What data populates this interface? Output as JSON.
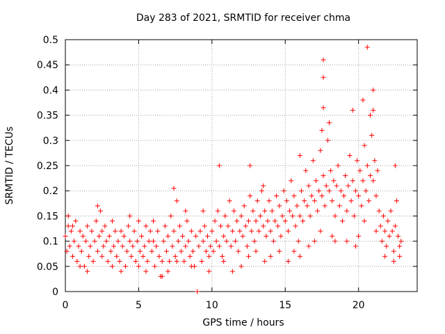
{
  "chart_data": {
    "type": "scatter",
    "title": "Day 283 of 2021, SRMTID for receiver chma",
    "xlabel": "GPS time / hours",
    "ylabel": "SRMTID / TECUs",
    "xlim": [
      0,
      24.0
    ],
    "ylim": [
      0,
      0.5
    ],
    "xticks": [
      0,
      5,
      10,
      15,
      20
    ],
    "yticks": [
      0,
      0.05,
      0.1,
      0.15,
      0.2,
      0.25,
      0.3,
      0.35,
      0.4,
      0.45,
      0.5
    ],
    "ytick_labels": [
      "0",
      "0.05",
      "0.1",
      "0.15",
      "0.2",
      "0.25",
      "0.3",
      "0.35",
      "0.4",
      "0.45",
      "0.5"
    ],
    "xtick_labels": [
      "0",
      "5",
      "10",
      "15",
      "20"
    ],
    "grid": true,
    "marker": "+",
    "marker_color": "#ff0000",
    "series": [
      {
        "name": "SRMTID",
        "points": [
          [
            0.0,
            0.11
          ],
          [
            0.1,
            0.08
          ],
          [
            0.2,
            0.13
          ],
          [
            0.3,
            0.09
          ],
          [
            0.4,
            0.12
          ],
          [
            0.5,
            0.07
          ],
          [
            0.6,
            0.1
          ],
          [
            0.7,
            0.14
          ],
          [
            0.8,
            0.06
          ],
          [
            0.9,
            0.09
          ],
          [
            1.0,
            0.12
          ],
          [
            1.1,
            0.08
          ],
          [
            1.2,
            0.11
          ],
          [
            1.3,
            0.05
          ],
          [
            1.4,
            0.1
          ],
          [
            1.5,
            0.13
          ],
          [
            1.6,
            0.07
          ],
          [
            1.7,
            0.09
          ],
          [
            1.8,
            0.12
          ],
          [
            1.9,
            0.06
          ],
          [
            2.0,
            0.1
          ],
          [
            2.1,
            0.14
          ],
          [
            2.2,
            0.08
          ],
          [
            2.3,
            0.11
          ],
          [
            2.4,
            0.16
          ],
          [
            2.5,
            0.07
          ],
          [
            2.6,
            0.09
          ],
          [
            2.7,
            0.13
          ],
          [
            2.8,
            0.1
          ],
          [
            2.9,
            0.06
          ],
          [
            3.0,
            0.11
          ],
          [
            3.1,
            0.08
          ],
          [
            3.2,
            0.14
          ],
          [
            3.3,
            0.09
          ],
          [
            3.4,
            0.12
          ],
          [
            3.5,
            0.07
          ],
          [
            3.6,
            0.1
          ],
          [
            3.7,
            0.06
          ],
          [
            3.8,
            0.12
          ],
          [
            3.9,
            0.09
          ],
          [
            4.0,
            0.11
          ],
          [
            4.1,
            0.05
          ],
          [
            4.2,
            0.08
          ],
          [
            4.3,
            0.13
          ],
          [
            4.4,
            0.1
          ],
          [
            4.5,
            0.07
          ],
          [
            4.6,
            0.09
          ],
          [
            4.7,
            0.12
          ],
          [
            4.8,
            0.06
          ],
          [
            4.9,
            0.1
          ],
          [
            5.0,
            0.14
          ],
          [
            5.1,
            0.08
          ],
          [
            5.2,
            0.11
          ],
          [
            5.3,
            0.07
          ],
          [
            5.4,
            0.09
          ],
          [
            5.5,
            0.13
          ],
          [
            5.6,
            0.06
          ],
          [
            5.7,
            0.1
          ],
          [
            5.8,
            0.12
          ],
          [
            5.9,
            0.08
          ],
          [
            6.0,
            0.1
          ],
          [
            6.1,
            0.05
          ],
          [
            6.2,
            0.09
          ],
          [
            6.3,
            0.12
          ],
          [
            6.4,
            0.07
          ],
          [
            6.5,
            0.03
          ],
          [
            6.6,
            0.06
          ],
          [
            6.7,
            0.1
          ],
          [
            6.8,
            0.13
          ],
          [
            6.9,
            0.08
          ],
          [
            7.0,
            0.11
          ],
          [
            7.1,
            0.06
          ],
          [
            7.2,
            0.15
          ],
          [
            7.3,
            0.09
          ],
          [
            7.4,
            0.12
          ],
          [
            7.5,
            0.07
          ],
          [
            7.6,
            0.18
          ],
          [
            7.7,
            0.1
          ],
          [
            7.8,
            0.13
          ],
          [
            7.9,
            0.08
          ],
          [
            8.0,
            0.11
          ],
          [
            8.1,
            0.06
          ],
          [
            8.2,
            0.09
          ],
          [
            8.3,
            0.14
          ],
          [
            8.4,
            0.1
          ],
          [
            8.5,
            0.07
          ],
          [
            8.6,
            0.12
          ],
          [
            8.7,
            0.08
          ],
          [
            8.8,
            0.05
          ],
          [
            8.9,
            0.11
          ],
          [
            9.0,
            0.0
          ],
          [
            9.1,
            0.09
          ],
          [
            9.2,
            0.12
          ],
          [
            9.3,
            0.06
          ],
          [
            9.4,
            0.1
          ],
          [
            9.5,
            0.13
          ],
          [
            9.6,
            0.08
          ],
          [
            9.7,
            0.11
          ],
          [
            9.8,
            0.07
          ],
          [
            9.9,
            0.09
          ],
          [
            10.0,
            0.12
          ],
          [
            10.1,
            0.08
          ],
          [
            10.2,
            0.14
          ],
          [
            10.3,
            0.1
          ],
          [
            10.4,
            0.16
          ],
          [
            10.5,
            0.09
          ],
          [
            10.6,
            0.13
          ],
          [
            10.7,
            0.07
          ],
          [
            10.8,
            0.11
          ],
          [
            10.9,
            0.15
          ],
          [
            11.0,
            0.1
          ],
          [
            11.1,
            0.13
          ],
          [
            11.2,
            0.18
          ],
          [
            11.3,
            0.09
          ],
          [
            11.4,
            0.12
          ],
          [
            11.5,
            0.16
          ],
          [
            11.6,
            0.1
          ],
          [
            11.7,
            0.14
          ],
          [
            11.8,
            0.08
          ],
          [
            11.9,
            0.12
          ],
          [
            12.0,
            0.15
          ],
          [
            12.1,
            0.11
          ],
          [
            12.2,
            0.17
          ],
          [
            12.3,
            0.13
          ],
          [
            12.4,
            0.09
          ],
          [
            12.5,
            0.14
          ],
          [
            12.6,
            0.19
          ],
          [
            12.7,
            0.12
          ],
          [
            12.8,
            0.16
          ],
          [
            12.9,
            0.1
          ],
          [
            13.0,
            0.14
          ],
          [
            13.1,
            0.18
          ],
          [
            13.2,
            0.12
          ],
          [
            13.3,
            0.15
          ],
          [
            13.4,
            0.2
          ],
          [
            13.5,
            0.13
          ],
          [
            13.6,
            0.16
          ],
          [
            13.7,
            0.11
          ],
          [
            13.8,
            0.14
          ],
          [
            13.9,
            0.18
          ],
          [
            14.0,
            0.12
          ],
          [
            14.1,
            0.16
          ],
          [
            14.2,
            0.1
          ],
          [
            14.3,
            0.14
          ],
          [
            14.4,
            0.19
          ],
          [
            14.5,
            0.13
          ],
          [
            14.6,
            0.17
          ],
          [
            14.7,
            0.11
          ],
          [
            14.8,
            0.15
          ],
          [
            14.9,
            0.2
          ],
          [
            15.0,
            0.14
          ],
          [
            15.1,
            0.18
          ],
          [
            15.2,
            0.12
          ],
          [
            15.3,
            0.16
          ],
          [
            15.4,
            0.22
          ],
          [
            15.5,
            0.15
          ],
          [
            15.6,
            0.19
          ],
          [
            15.7,
            0.13
          ],
          [
            15.8,
            0.17
          ],
          [
            15.9,
            0.1
          ],
          [
            16.0,
            0.15
          ],
          [
            16.1,
            0.2
          ],
          [
            16.2,
            0.14
          ],
          [
            16.3,
            0.18
          ],
          [
            16.4,
            0.24
          ],
          [
            16.5,
            0.17
          ],
          [
            16.6,
            0.21
          ],
          [
            16.7,
            0.15
          ],
          [
            16.8,
            0.19
          ],
          [
            16.9,
            0.26
          ],
          [
            17.0,
            0.18
          ],
          [
            17.1,
            0.22
          ],
          [
            17.2,
            0.16
          ],
          [
            17.3,
            0.2
          ],
          [
            17.4,
            0.28
          ],
          [
            17.5,
            0.19
          ],
          [
            17.6,
            0.23
          ],
          [
            17.7,
            0.17
          ],
          [
            17.8,
            0.21
          ],
          [
            17.9,
            0.3
          ],
          [
            18.0,
            0.2
          ],
          [
            18.1,
            0.24
          ],
          [
            18.2,
            0.18
          ],
          [
            18.3,
            0.22
          ],
          [
            18.4,
            0.15
          ],
          [
            18.5,
            0.21
          ],
          [
            18.6,
            0.25
          ],
          [
            18.7,
            0.17
          ],
          [
            18.8,
            0.2
          ],
          [
            18.9,
            0.14
          ],
          [
            19.0,
            0.19
          ],
          [
            19.1,
            0.23
          ],
          [
            19.2,
            0.16
          ],
          [
            19.3,
            0.21
          ],
          [
            19.4,
            0.27
          ],
          [
            19.5,
            0.18
          ],
          [
            19.6,
            0.22
          ],
          [
            19.7,
            0.15
          ],
          [
            19.8,
            0.2
          ],
          [
            19.9,
            0.26
          ],
          [
            20.0,
            0.19
          ],
          [
            20.1,
            0.24
          ],
          [
            20.2,
            0.17
          ],
          [
            20.3,
            0.22
          ],
          [
            20.4,
            0.29
          ],
          [
            20.5,
            0.2
          ],
          [
            20.6,
            0.25
          ],
          [
            20.7,
            0.18
          ],
          [
            20.8,
            0.23
          ],
          [
            20.9,
            0.31
          ],
          [
            21.0,
            0.22
          ],
          [
            21.1,
            0.26
          ],
          [
            21.2,
            0.19
          ],
          [
            21.3,
            0.24
          ],
          [
            21.4,
            0.16
          ],
          [
            21.5,
            0.13
          ],
          [
            21.6,
            0.1
          ],
          [
            21.7,
            0.15
          ],
          [
            21.8,
            0.12
          ],
          [
            21.9,
            0.09
          ],
          [
            22.0,
            0.14
          ],
          [
            22.1,
            0.11
          ],
          [
            22.2,
            0.16
          ],
          [
            22.3,
            0.12
          ],
          [
            22.4,
            0.08
          ],
          [
            22.5,
            0.13
          ],
          [
            22.6,
            0.18
          ],
          [
            22.7,
            0.11
          ],
          [
            22.8,
            0.07
          ],
          [
            22.9,
            0.1
          ],
          [
            17.6,
            0.46
          ],
          [
            17.6,
            0.425
          ],
          [
            17.6,
            0.365
          ],
          [
            20.6,
            0.485
          ],
          [
            21.0,
            0.4
          ],
          [
            21.0,
            0.36
          ],
          [
            20.8,
            0.35
          ],
          [
            19.6,
            0.36
          ],
          [
            20.3,
            0.38
          ],
          [
            17.5,
            0.32
          ],
          [
            18.0,
            0.335
          ],
          [
            16.0,
            0.27
          ],
          [
            22.5,
            0.25
          ],
          [
            13.5,
            0.21
          ],
          [
            7.4,
            0.205
          ],
          [
            10.5,
            0.25
          ],
          [
            12.6,
            0.25
          ],
          [
            18.4,
            0.1
          ],
          [
            19.8,
            0.09
          ],
          [
            16.0,
            0.07
          ],
          [
            0.2,
            0.15
          ],
          [
            0.5,
            0.13
          ],
          [
            1.0,
            0.05
          ],
          [
            1.5,
            0.04
          ],
          [
            2.2,
            0.17
          ],
          [
            2.5,
            0.12
          ],
          [
            3.2,
            0.05
          ],
          [
            3.8,
            0.04
          ],
          [
            4.4,
            0.15
          ],
          [
            5.0,
            0.05
          ],
          [
            5.5,
            0.04
          ],
          [
            6.0,
            0.14
          ],
          [
            6.6,
            0.03
          ],
          [
            7.0,
            0.04
          ],
          [
            7.6,
            0.06
          ],
          [
            8.2,
            0.16
          ],
          [
            8.6,
            0.05
          ],
          [
            9.4,
            0.16
          ],
          [
            9.8,
            0.04
          ],
          [
            10.8,
            0.06
          ],
          [
            11.4,
            0.04
          ],
          [
            12.0,
            0.05
          ],
          [
            12.5,
            0.07
          ],
          [
            13.0,
            0.08
          ],
          [
            13.6,
            0.06
          ],
          [
            14.0,
            0.07
          ],
          [
            14.6,
            0.08
          ],
          [
            15.2,
            0.06
          ],
          [
            15.6,
            0.08
          ],
          [
            16.6,
            0.09
          ],
          [
            17.0,
            0.1
          ],
          [
            17.4,
            0.12
          ],
          [
            18.2,
            0.11
          ],
          [
            19.2,
            0.1
          ],
          [
            20.0,
            0.11
          ],
          [
            20.4,
            0.14
          ],
          [
            21.2,
            0.12
          ],
          [
            21.8,
            0.07
          ],
          [
            22.4,
            0.06
          ],
          [
            22.8,
            0.09
          ]
        ]
      }
    ]
  }
}
